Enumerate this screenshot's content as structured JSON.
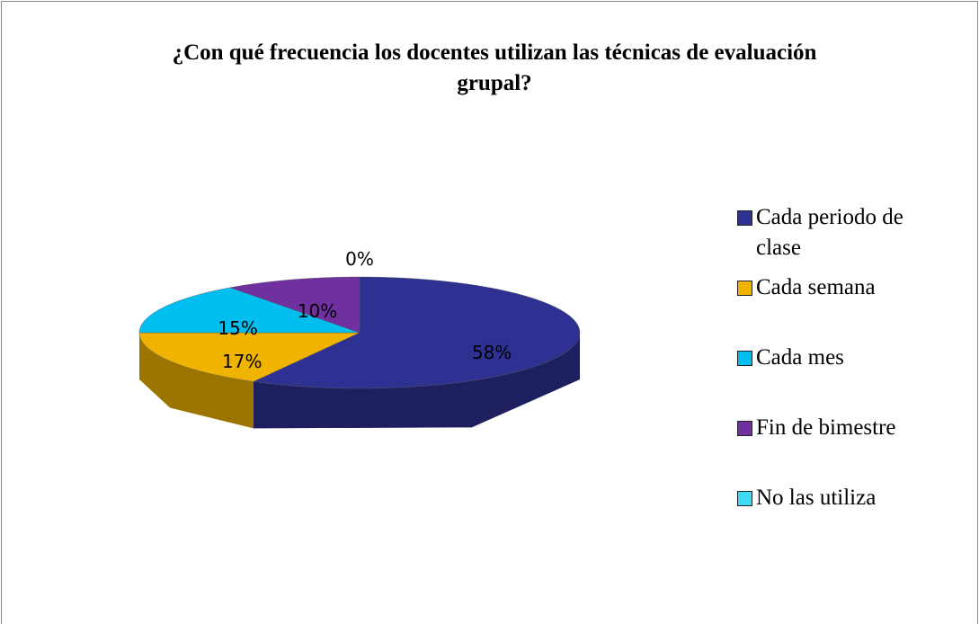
{
  "chart_data": {
    "type": "pie",
    "title": "¿Con qué  frecuencia los docentes utilizan las técnicas de evaluación grupal?",
    "categories": [
      "Cada periodo de clase",
      "Cada semana",
      "Cada mes",
      "Fin de bimestre",
      "No las utiliza"
    ],
    "values": [
      58,
      17,
      15,
      10,
      0
    ],
    "value_labels": [
      "58%",
      "17%",
      "15%",
      "10%",
      "0%"
    ],
    "colors": [
      "#2e3192",
      "#f0b400",
      "#00bff0",
      "#7030a0",
      "#3fd8f5"
    ],
    "legend": "right"
  }
}
